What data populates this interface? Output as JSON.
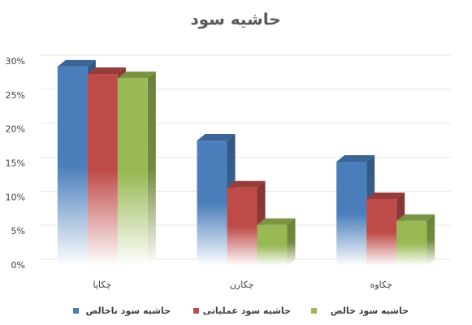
{
  "chart_data": {
    "type": "bar3d",
    "title": "حاشیه سود",
    "categories": [
      "چکاپا",
      "چکارن",
      "چکاوه"
    ],
    "series": [
      {
        "name": "حاشیه سود ناخالص",
        "color": "#4a7ebb",
        "values": [
          29.3,
          18.4,
          15.3
        ]
      },
      {
        "name": "حاشیه سود عملیاتی",
        "color": "#be4b48",
        "values": [
          28.2,
          11.5,
          9.8
        ]
      },
      {
        "name": "حاشیه سود خالص",
        "color": "#98b954",
        "values": [
          27.6,
          6,
          6.6
        ]
      }
    ],
    "ylim": [
      0,
      30
    ],
    "yticks": [
      {
        "value": 0,
        "label": "0%"
      },
      {
        "value": 5,
        "label": "5%"
      },
      {
        "value": 10,
        "label": "10%"
      },
      {
        "value": 15,
        "label": "15%"
      },
      {
        "value": 20,
        "label": "20%"
      },
      {
        "value": 25,
        "label": "25%"
      },
      {
        "value": 30,
        "label": "30%"
      }
    ],
    "grid": true,
    "legend": "bottom"
  }
}
